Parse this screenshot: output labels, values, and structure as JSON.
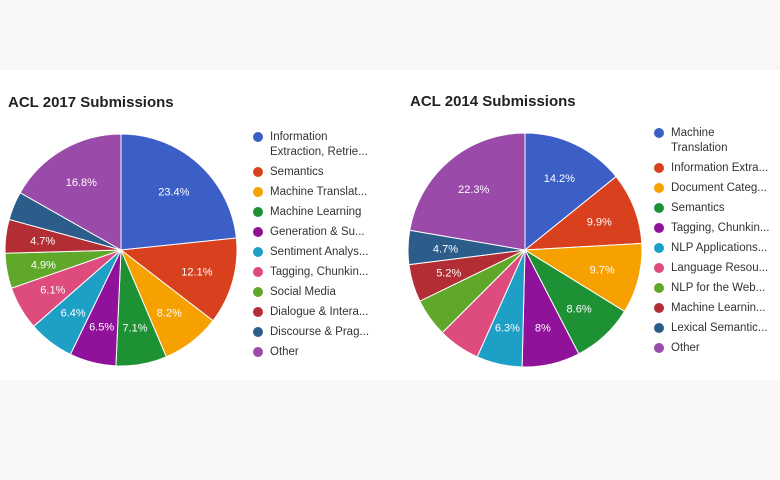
{
  "chart_data": [
    {
      "type": "pie",
      "title": "ACL 2017 Submissions",
      "legend_position": "right",
      "slices": [
        {
          "label": "Information Extraction, Retrie...",
          "value": 23.4,
          "display": "23.4%",
          "color": "#3b5fc6"
        },
        {
          "label": "Semantics",
          "value": 12.1,
          "display": "12.1%",
          "color": "#d9411e"
        },
        {
          "label": "Machine Translat...",
          "value": 8.2,
          "display": "8.2%",
          "color": "#f6a100"
        },
        {
          "label": "Machine Learning",
          "value": 7.1,
          "display": "7.1%",
          "color": "#1e9134"
        },
        {
          "label": "Generation & Su...",
          "value": 6.5,
          "display": "6.5%",
          "color": "#90129a"
        },
        {
          "label": "Sentiment Analys...",
          "value": 6.4,
          "display": "6.4%",
          "color": "#1e9fc6"
        },
        {
          "label": "Tagging, Chunkin...",
          "value": 6.1,
          "display": "6.1%",
          "color": "#dd4c7c"
        },
        {
          "label": "Social Media",
          "value": 4.9,
          "display": "4.9%",
          "color": "#5fa82a"
        },
        {
          "label": "Dialogue & Intera...",
          "value": 4.7,
          "display": "4.7%",
          "color": "#b22e34"
        },
        {
          "label": "Discourse & Prag...",
          "value": 4.0,
          "display": "",
          "color": "#2c5c8a"
        },
        {
          "label": "Other",
          "value": 16.8,
          "display": "16.8%",
          "color": "#9a4aa8"
        }
      ]
    },
    {
      "type": "pie",
      "title": "ACL 2014 Submissions",
      "legend_position": "right",
      "slices": [
        {
          "label": "Machine Translation",
          "value": 14.2,
          "display": "14.2%",
          "color": "#3b5fc6"
        },
        {
          "label": "Information Extra...",
          "value": 9.9,
          "display": "9.9%",
          "color": "#d9411e"
        },
        {
          "label": "Document Categ...",
          "value": 9.7,
          "display": "9.7%",
          "color": "#f6a100"
        },
        {
          "label": "Semantics",
          "value": 8.6,
          "display": "8.6%",
          "color": "#1e9134"
        },
        {
          "label": "Tagging, Chunkin...",
          "value": 8.0,
          "display": "8%",
          "color": "#90129a"
        },
        {
          "label": "NLP Applications...",
          "value": 6.3,
          "display": "6.3%",
          "color": "#1e9fc6"
        },
        {
          "label": "Language Resou...",
          "value": 5.8,
          "display": "",
          "color": "#dd4c7c"
        },
        {
          "label": "NLP for the Web...",
          "value": 5.3,
          "display": "",
          "color": "#5fa82a"
        },
        {
          "label": "Machine Learnin...",
          "value": 5.2,
          "display": "5.2%",
          "color": "#b22e34"
        },
        {
          "label": "Lexical Semantic...",
          "value": 4.7,
          "display": "4.7%",
          "color": "#2c5c8a"
        },
        {
          "label": "Other",
          "value": 22.3,
          "display": "22.3%",
          "color": "#9a4aa8"
        }
      ]
    }
  ]
}
